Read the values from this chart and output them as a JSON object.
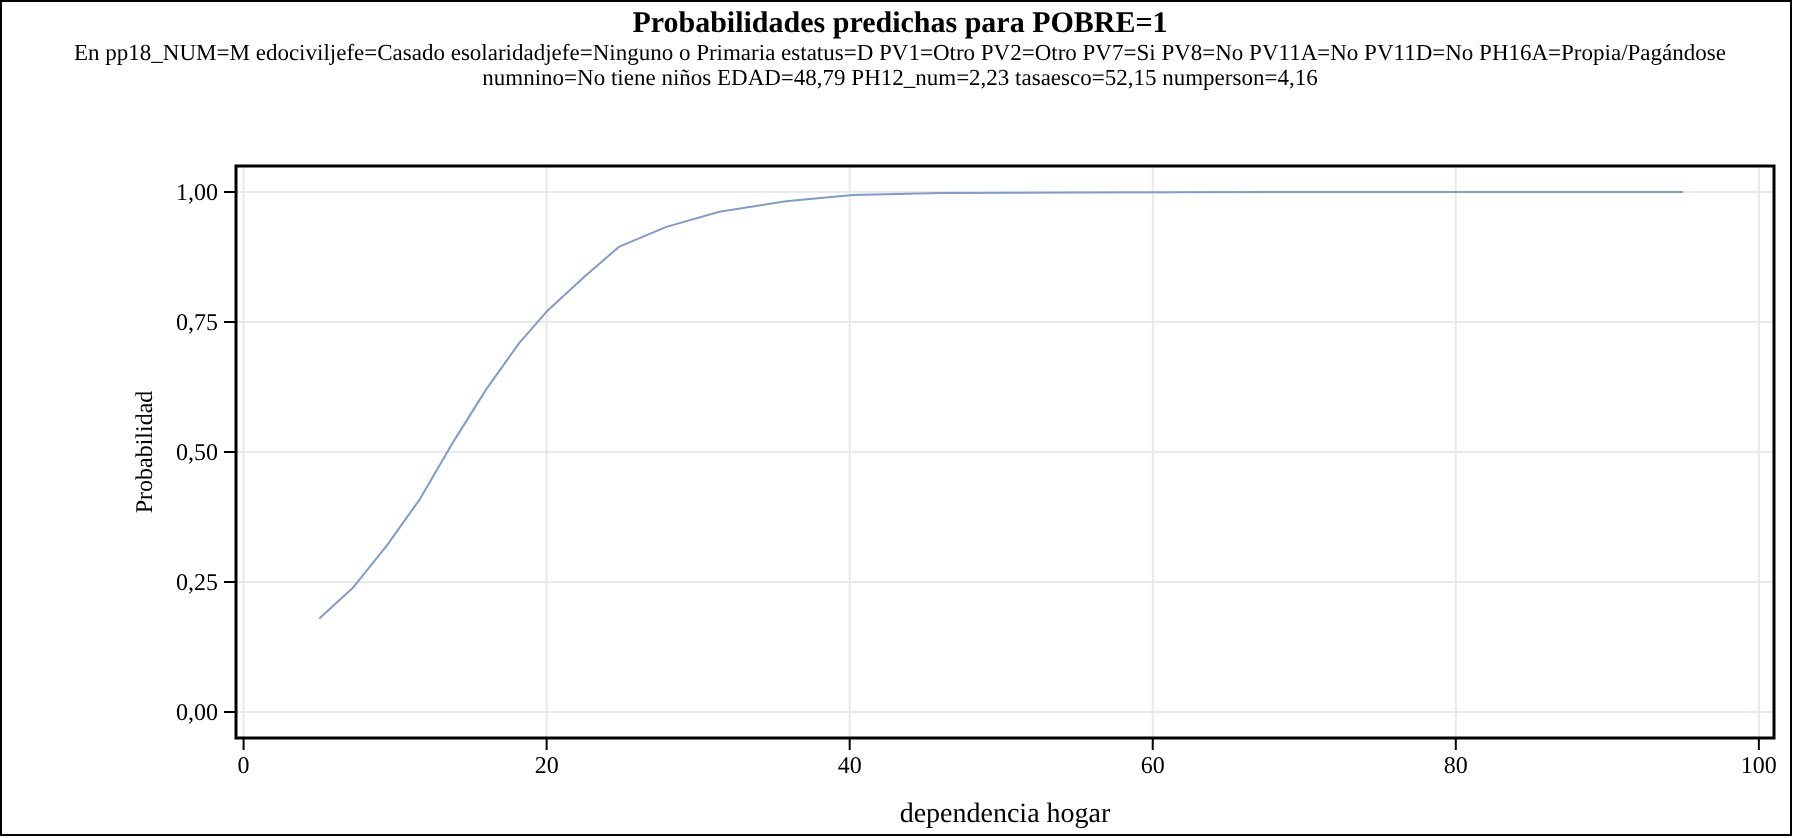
{
  "chart_data": {
    "type": "line",
    "title": "Probabilidades predichas para POBRE=1",
    "subtitle": "En pp18_NUM=M edociviljefe=Casado esolaridadjefe=Ninguno o Primaria estatus=D PV1=Otro PV2=Otro PV7=Si PV8=No PV11A=No PV11D=No PH16A=Propia/Pagándose numnino=No tiene niños EDAD=48,79 PH12_num=2,23 tasaesco=52,15 numperson=4,16",
    "xlabel": "dependencia hogar",
    "ylabel": "Probabilidad",
    "x": [
      5,
      7.25,
      9.45,
      11.65,
      13.85,
      16,
      18.2,
      20,
      22.6,
      24.8,
      27.9,
      31.4,
      35.8,
      40.2,
      46,
      55,
      70,
      95
    ],
    "series": [
      {
        "color": "#7f9ccb",
        "values": [
          0.18,
          0.24,
          0.32,
          0.41,
          0.52,
          0.62,
          0.71,
          0.77,
          0.84,
          0.895,
          0.933,
          0.962,
          0.982,
          0.994,
          0.998,
          0.999,
          1,
          1
        ]
      }
    ],
    "xlim": [
      -0.5,
      101
    ],
    "ylim": [
      -0.05,
      1.05
    ],
    "xticks": [
      0,
      20,
      40,
      60,
      80,
      100
    ],
    "yticks": [
      {
        "value": 0,
        "label": "0,00"
      },
      {
        "value": 0.25,
        "label": "0,25"
      },
      {
        "value": 0.5,
        "label": "0,50"
      },
      {
        "value": 0.75,
        "label": "0,75"
      },
      {
        "value": 1,
        "label": "1,00"
      }
    ],
    "grid": true,
    "marker": "none",
    "line_style": "solid"
  }
}
